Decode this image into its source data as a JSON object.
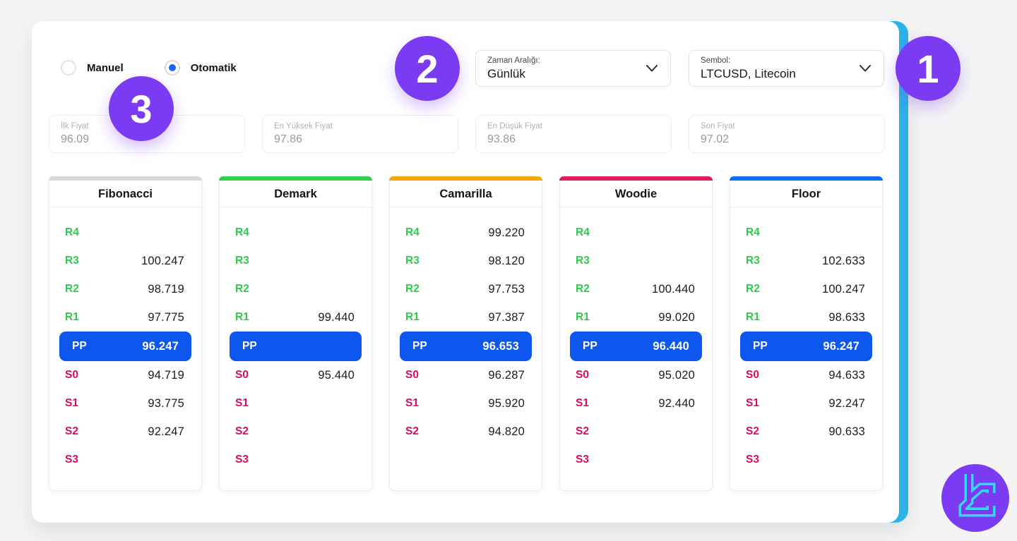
{
  "page": {
    "background": "#f4f4f5",
    "accent_cyan": "#2cb1e8",
    "accent_purple": "#7b3bf2",
    "pp_blue": "#0d57ee",
    "resistance_green": "#2fc94f",
    "support_pink": "#dc0a5e"
  },
  "mode": {
    "options": [
      {
        "label": "Manuel",
        "selected": false
      },
      {
        "label": "Otomatik",
        "selected": true
      }
    ]
  },
  "selects": {
    "interval": {
      "label": "Zaman Aralığı:",
      "value": "Günlük",
      "icon": "chevron-down"
    },
    "symbol": {
      "label": "Sembol:",
      "value": "LTCUSD, Litecoin",
      "icon": "chevron-down"
    }
  },
  "price_inputs": [
    {
      "label": "İlk Fiyat",
      "value": "96.09"
    },
    {
      "label": "En Yüksek Fiyat",
      "value": "97.86"
    },
    {
      "label": "En Düşük Fiyat",
      "value": "93.86"
    },
    {
      "label": "Son Fiyat",
      "value": "97.02"
    }
  ],
  "methods": [
    {
      "name": "Fibonacci",
      "color": "#d9d9d9",
      "rows": [
        {
          "label": "R4",
          "value": ""
        },
        {
          "label": "R3",
          "value": "100.247"
        },
        {
          "label": "R2",
          "value": "98.719"
        },
        {
          "label": "R1",
          "value": "97.775"
        },
        {
          "label": "PP",
          "value": "96.247"
        },
        {
          "label": "S0",
          "value": "94.719"
        },
        {
          "label": "S1",
          "value": "93.775"
        },
        {
          "label": "S2",
          "value": "92.247"
        },
        {
          "label": "S3",
          "value": ""
        }
      ]
    },
    {
      "name": "Demark",
      "color": "#33cf4d",
      "rows": [
        {
          "label": "R4",
          "value": ""
        },
        {
          "label": "R3",
          "value": ""
        },
        {
          "label": "R2",
          "value": ""
        },
        {
          "label": "R1",
          "value": "99.440"
        },
        {
          "label": "PP",
          "value": ""
        },
        {
          "label": "S0",
          "value": "95.440"
        },
        {
          "label": "S1",
          "value": ""
        },
        {
          "label": "S2",
          "value": ""
        },
        {
          "label": "S3",
          "value": ""
        }
      ]
    },
    {
      "name": "Camarilla",
      "color": "#f7a600",
      "rows": [
        {
          "label": "R4",
          "value": "99.220"
        },
        {
          "label": "R3",
          "value": "98.120"
        },
        {
          "label": "R2",
          "value": "97.753"
        },
        {
          "label": "R1",
          "value": "97.387"
        },
        {
          "label": "PP",
          "value": "96.653"
        },
        {
          "label": "S0",
          "value": "96.287"
        },
        {
          "label": "S1",
          "value": "95.920"
        },
        {
          "label": "S2",
          "value": "94.820"
        }
      ]
    },
    {
      "name": "Woodie",
      "color": "#e01a5f",
      "rows": [
        {
          "label": "R4",
          "value": ""
        },
        {
          "label": "R3",
          "value": ""
        },
        {
          "label": "R2",
          "value": "100.440"
        },
        {
          "label": "R1",
          "value": "99.020"
        },
        {
          "label": "PP",
          "value": "96.440"
        },
        {
          "label": "S0",
          "value": "95.020"
        },
        {
          "label": "S1",
          "value": "92.440"
        },
        {
          "label": "S2",
          "value": ""
        },
        {
          "label": "S3",
          "value": ""
        }
      ]
    },
    {
      "name": "Floor",
      "color": "#0b6df2",
      "rows": [
        {
          "label": "R4",
          "value": ""
        },
        {
          "label": "R3",
          "value": "102.633"
        },
        {
          "label": "R2",
          "value": "100.247"
        },
        {
          "label": "R1",
          "value": "98.633"
        },
        {
          "label": "PP",
          "value": "96.247"
        },
        {
          "label": "S0",
          "value": "94.633"
        },
        {
          "label": "S1",
          "value": "92.247"
        },
        {
          "label": "S2",
          "value": "90.633"
        },
        {
          "label": "S3",
          "value": ""
        }
      ]
    }
  ],
  "annotations": [
    {
      "number": "1"
    },
    {
      "number": "2"
    },
    {
      "number": "3"
    }
  ],
  "logo": {
    "icon": "lc-monogram"
  }
}
